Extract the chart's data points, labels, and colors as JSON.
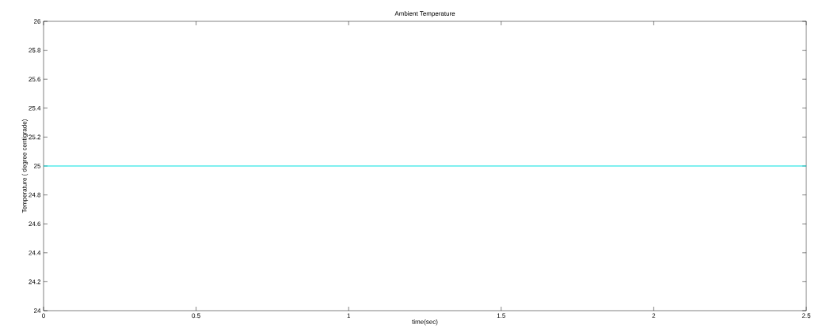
{
  "chart_data": {
    "type": "line",
    "title": "Ambient Temperature",
    "xlabel": "time(sec)",
    "ylabel": "Temperature ( degree centigrade)",
    "x": [
      0,
      2.5
    ],
    "series": [
      {
        "color": "#00e0e0",
        "values": [
          25,
          25
        ]
      }
    ],
    "xlim": [
      0,
      2.5
    ],
    "ylim": [
      24,
      26
    ],
    "xticks": [
      0,
      0.5,
      1,
      1.5,
      2,
      2.5
    ],
    "yticks": [
      24,
      24.2,
      24.4,
      24.6,
      24.8,
      25,
      25.2,
      25.4,
      25.6,
      25.8,
      26
    ],
    "marker": "none"
  }
}
